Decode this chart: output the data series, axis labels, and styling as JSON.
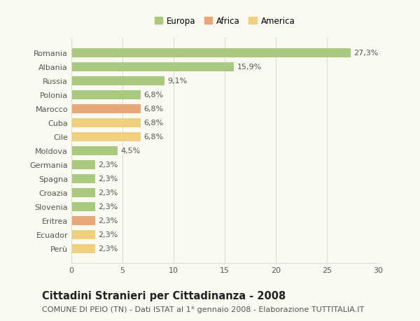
{
  "categories": [
    "Romania",
    "Albania",
    "Russia",
    "Polonia",
    "Marocco",
    "Cuba",
    "Cile",
    "Moldova",
    "Germania",
    "Spagna",
    "Croazia",
    "Slovenia",
    "Eritrea",
    "Ecuador",
    "Perù"
  ],
  "values": [
    27.3,
    15.9,
    9.1,
    6.8,
    6.8,
    6.8,
    6.8,
    4.5,
    2.3,
    2.3,
    2.3,
    2.3,
    2.3,
    2.3,
    2.3
  ],
  "labels": [
    "27,3%",
    "15,9%",
    "9,1%",
    "6,8%",
    "6,8%",
    "6,8%",
    "6,8%",
    "4,5%",
    "2,3%",
    "2,3%",
    "2,3%",
    "2,3%",
    "2,3%",
    "2,3%",
    "2,3%"
  ],
  "colors": [
    "#a8c97f",
    "#a8c97f",
    "#a8c97f",
    "#a8c97f",
    "#e8a87c",
    "#f0d080",
    "#f0d080",
    "#a8c97f",
    "#a8c97f",
    "#a8c97f",
    "#a8c97f",
    "#a8c97f",
    "#e8a87c",
    "#f0d080",
    "#f0d080"
  ],
  "legend_labels": [
    "Europa",
    "Africa",
    "America"
  ],
  "legend_colors": [
    "#a8c97f",
    "#e8a87c",
    "#f0d080"
  ],
  "xlim": [
    0,
    30
  ],
  "xticks": [
    0,
    5,
    10,
    15,
    20,
    25,
    30
  ],
  "title": "Cittadini Stranieri per Cittadinanza - 2008",
  "subtitle": "COMUNE DI PEIO (TN) - Dati ISTAT al 1° gennaio 2008 - Elaborazione TUTTITALIA.IT",
  "title_fontsize": 10.5,
  "subtitle_fontsize": 8,
  "label_fontsize": 8,
  "tick_fontsize": 8,
  "legend_fontsize": 8.5,
  "bar_height": 0.65,
  "background_color": "#fafaf0",
  "grid_color": "#ddddcc"
}
